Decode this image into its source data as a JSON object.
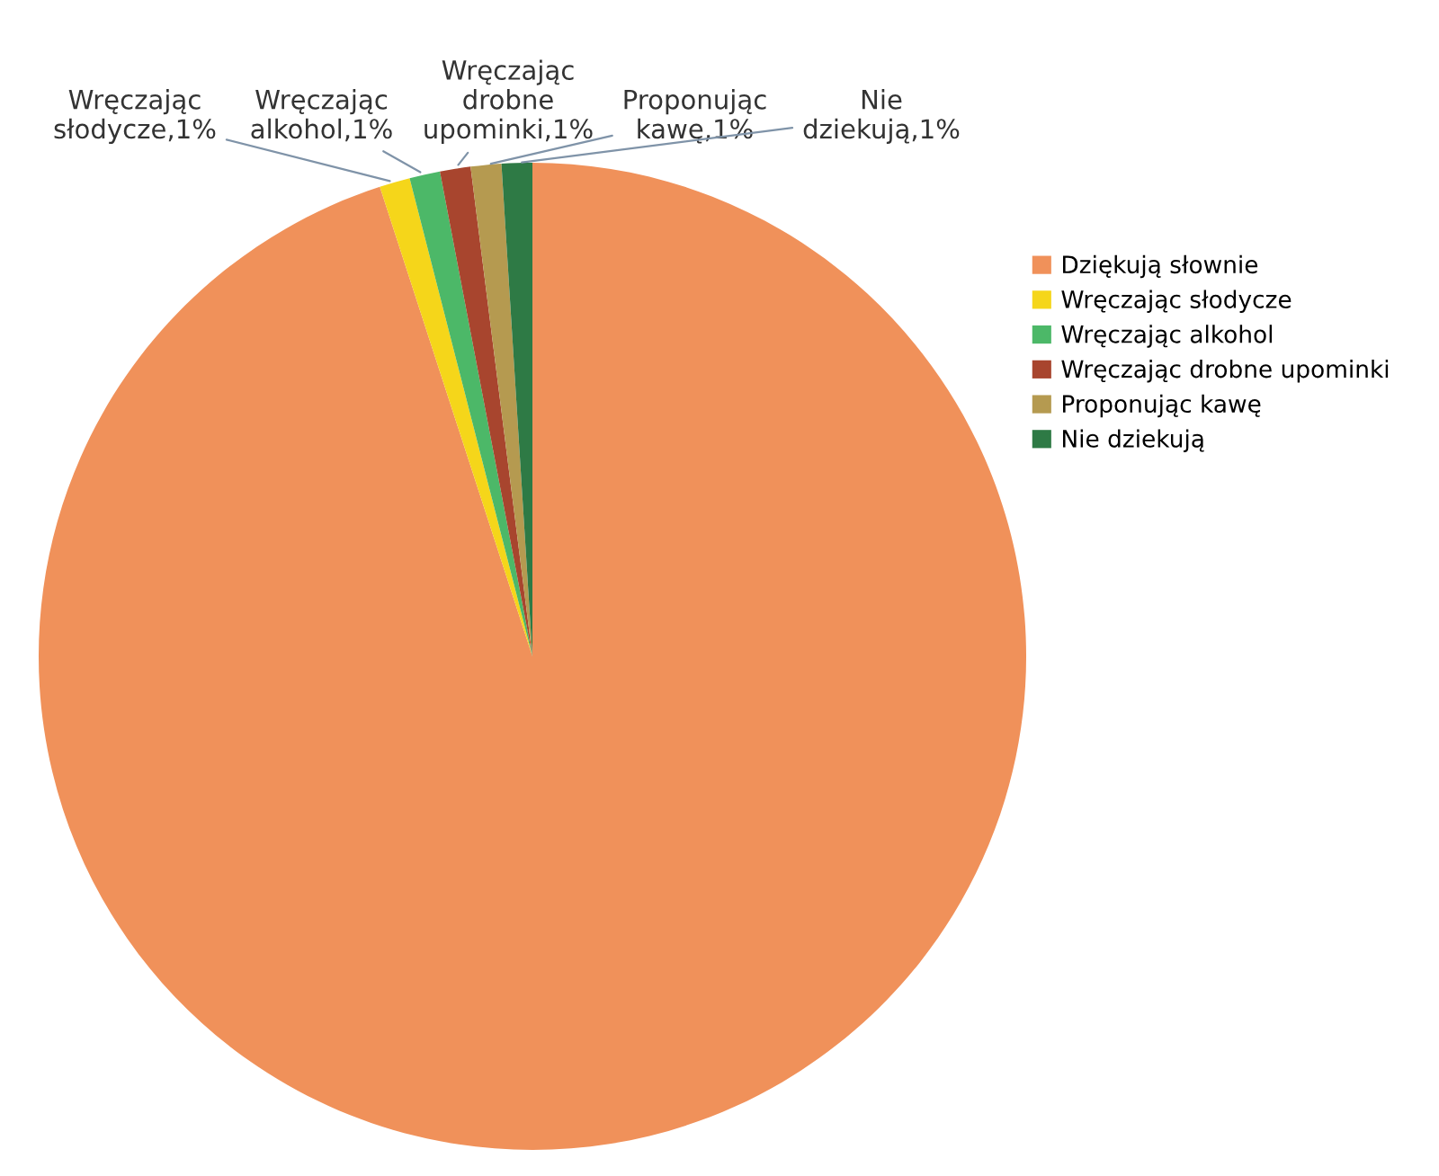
{
  "chart_data": {
    "type": "pie",
    "categories": [
      "Dziękują słownie",
      "Wręczając słodycze",
      "Wręczając alkohol",
      "Wręczając drobne upominki",
      "Proponując kawę",
      "Nie dziekują"
    ],
    "values": [
      95,
      1,
      1,
      1,
      1,
      1
    ],
    "colors": [
      "#f0915a",
      "#f5d61a",
      "#4cb868",
      "#a8452e",
      "#b59a50",
      "#2e7a45"
    ],
    "value_labels": [
      null,
      "Wręczając\nsłodycze,1%",
      "Wręczając\nalkohol,1%",
      "Wręczając\ndrobne\nupominki,1%",
      "Proponując\nkawę,1%",
      "Nie\ndziekują,1%"
    ],
    "legend": "right"
  }
}
